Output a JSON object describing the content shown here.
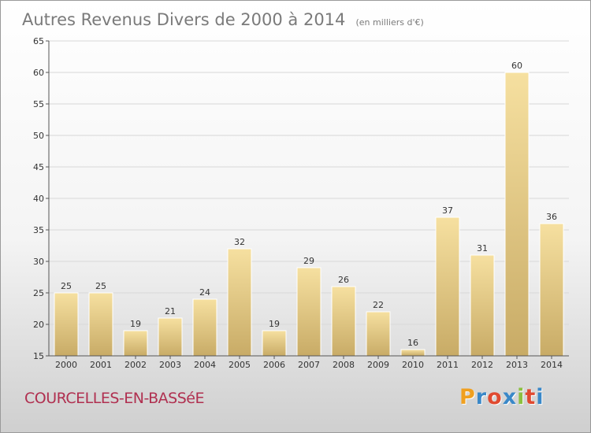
{
  "chart_data": {
    "type": "bar",
    "title": "Autres Revenus Divers de 2000 à 2014",
    "subtitle": "(en milliers d'€)",
    "categories": [
      "2000",
      "2001",
      "2002",
      "2003",
      "2004",
      "2005",
      "2006",
      "2007",
      "2008",
      "2009",
      "2010",
      "2011",
      "2012",
      "2013",
      "2014"
    ],
    "values": [
      25,
      25,
      19,
      21,
      24,
      32,
      19,
      29,
      26,
      22,
      16,
      37,
      31,
      60,
      36
    ],
    "ylim": [
      15,
      65
    ],
    "yticks": [
      15,
      20,
      25,
      30,
      35,
      40,
      45,
      50,
      55,
      60,
      65
    ],
    "grid": true,
    "bar_color": "#e8c87a"
  },
  "footer": {
    "place": "COURCELLES-EN-BASSéE",
    "brand_letters": [
      "P",
      "r",
      "o",
      "x",
      "i",
      "t",
      "i"
    ],
    "brand_colors": [
      "#f0a020",
      "#3a88c8",
      "#e04a30",
      "#3a88c8",
      "#8cc040",
      "#e04a30",
      "#3a88c8"
    ]
  }
}
